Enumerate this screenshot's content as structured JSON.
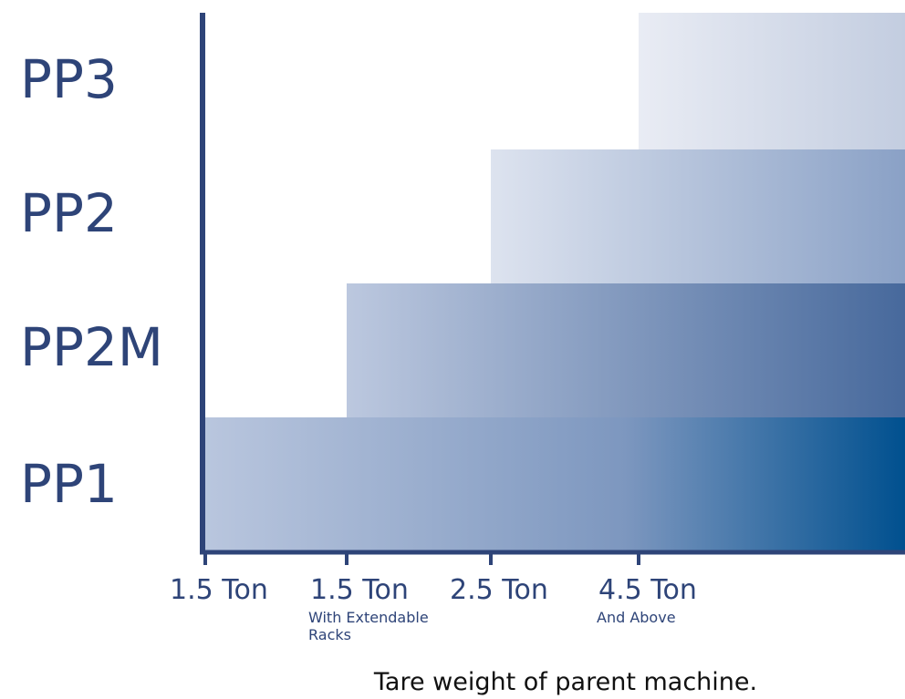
{
  "chart_data": {
    "type": "bar",
    "orientation": "horizontal",
    "categories": [
      "PP3",
      "PP2",
      "PP2M",
      "PP1"
    ],
    "x_ticks": [
      {
        "label": "1.5 Ton",
        "sub": ""
      },
      {
        "label": "1.5 Ton",
        "sub": "With Extendable Racks"
      },
      {
        "label": "2.5 Ton",
        "sub": ""
      },
      {
        "label": "4.5 Ton",
        "sub": "And Above"
      }
    ],
    "bars": [
      {
        "category": "PP3",
        "start_tick": 3
      },
      {
        "category": "PP2",
        "start_tick": 2
      },
      {
        "category": "PP2M",
        "start_tick": 1
      },
      {
        "category": "PP1",
        "start_tick": 0
      }
    ],
    "xlabel": "Tare weight of parent machine.",
    "colors": {
      "axis": "#2e4478",
      "gradient_light": "#e9ecf4",
      "gradient_dark": "#00508f",
      "text": "#2e4478"
    }
  }
}
